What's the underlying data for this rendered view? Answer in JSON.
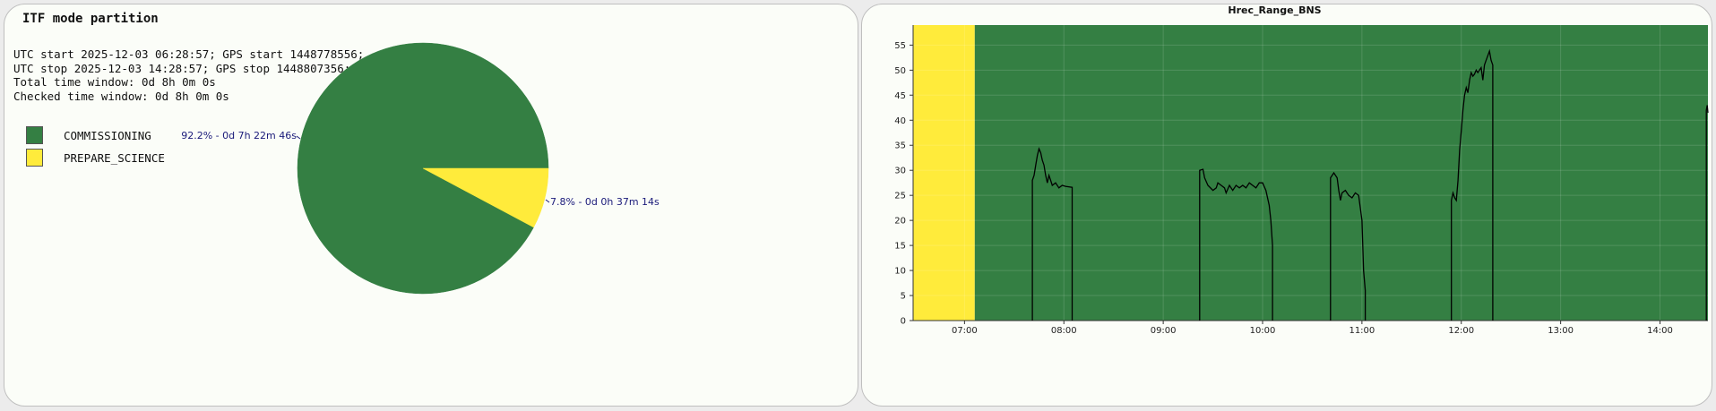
{
  "pie": {
    "title": "ITF mode partition",
    "info_lines": [
      "UTC start 2025-12-03 06:28:57; GPS start 1448778556;",
      "UTC stop 2025-12-03 14:28:57; GPS stop 1448807356;",
      "Total time window: 0d 8h 0m 0s",
      "Checked time window: 0d 8h 0m 0s"
    ],
    "legend": [
      {
        "label": "COMMISSIONING",
        "color": "#347f43"
      },
      {
        "label": "PREPARE_SCIENCE",
        "color": "#ffeb3b"
      }
    ]
  },
  "chart_data": [
    {
      "type": "pie",
      "title": "ITF mode partition",
      "slices": [
        {
          "name": "COMMISSIONING",
          "percent": 92.2,
          "label": "92.2% - 0d 7h 22m 46s",
          "color": "#347f43"
        },
        {
          "name": "PREPARE_SCIENCE",
          "percent": 7.8,
          "label": "7.8% - 0d 0h 37m 14s",
          "color": "#ffeb3b"
        }
      ]
    },
    {
      "type": "line",
      "title": "Hrec_Range_BNS",
      "xlabel": "",
      "ylabel": "",
      "x_range": [
        "06:28:57",
        "14:28:57"
      ],
      "ylim": [
        0,
        59
      ],
      "grid": true,
      "y_ticks": [
        0,
        5,
        10,
        15,
        20,
        25,
        30,
        35,
        40,
        45,
        50,
        55
      ],
      "x_ticks": [
        "07:00",
        "08:00",
        "09:00",
        "10:00",
        "11:00",
        "12:00",
        "13:00",
        "14:00"
      ],
      "line_color": "#000000",
      "background_bands": [
        {
          "mode": "PREPARE_SCIENCE",
          "start": "06:28:57",
          "end": "07:06:11",
          "color": "#ffeb3b"
        },
        {
          "mode": "COMMISSIONING",
          "start": "07:06:11",
          "end": "14:28:57",
          "color": "#347f43"
        }
      ],
      "series": [
        {
          "segments": [
            [
              [
                "07:41",
                0
              ],
              [
                "07:41",
                28
              ],
              [
                "07:42",
                29
              ],
              [
                "07:43",
                31
              ],
              [
                "07:44",
                33
              ],
              [
                "07:45",
                34.3
              ],
              [
                "07:46",
                33.5
              ],
              [
                "07:47",
                32
              ],
              [
                "07:48",
                31
              ],
              [
                "07:49",
                29
              ],
              [
                "07:50",
                27.5
              ],
              [
                "07:51",
                29
              ],
              [
                "07:52",
                28
              ],
              [
                "07:53",
                27
              ],
              [
                "07:55",
                27.5
              ],
              [
                "07:57",
                26.5
              ],
              [
                "07:59",
                27
              ],
              [
                "08:01",
                26.8
              ],
              [
                "08:05",
                26.6
              ],
              [
                "08:05",
                0
              ]
            ],
            [
              [
                "09:22",
                0
              ],
              [
                "09:22",
                30
              ],
              [
                "09:24",
                30.2
              ],
              [
                "09:25",
                28.5
              ],
              [
                "09:27",
                27
              ],
              [
                "09:30",
                26
              ],
              [
                "09:32",
                26.5
              ],
              [
                "09:33",
                27.5
              ],
              [
                "09:35",
                27
              ],
              [
                "09:37",
                26.5
              ],
              [
                "09:38",
                25.5
              ],
              [
                "09:40",
                27
              ],
              [
                "09:42",
                26
              ],
              [
                "09:44",
                27
              ],
              [
                "09:46",
                26.5
              ],
              [
                "09:48",
                27
              ],
              [
                "09:50",
                26.5
              ],
              [
                "09:52",
                27.5
              ],
              [
                "09:54",
                27
              ],
              [
                "09:56",
                26.5
              ],
              [
                "09:58",
                27.5
              ],
              [
                "10:00",
                27.5
              ],
              [
                "10:02",
                26
              ],
              [
                "10:04",
                23
              ],
              [
                "10:05",
                20
              ],
              [
                "10:06",
                15
              ],
              [
                "10:06",
                0
              ]
            ],
            [
              [
                "10:41",
                0
              ],
              [
                "10:41",
                28.5
              ],
              [
                "10:43",
                29.5
              ],
              [
                "10:45",
                28.5
              ],
              [
                "10:46",
                26
              ],
              [
                "10:47",
                24
              ],
              [
                "10:48",
                25.5
              ],
              [
                "10:50",
                26
              ],
              [
                "10:52",
                25
              ],
              [
                "10:54",
                24.5
              ],
              [
                "10:56",
                25.5
              ],
              [
                "10:58",
                25
              ],
              [
                "11:00",
                20
              ],
              [
                "11:01",
                10
              ],
              [
                "11:02",
                6
              ],
              [
                "11:02",
                0
              ]
            ],
            [
              [
                "11:54",
                0
              ],
              [
                "11:54",
                24
              ],
              [
                "11:55",
                25.5
              ],
              [
                "11:56",
                24.5
              ],
              [
                "11:57",
                24
              ],
              [
                "11:58",
                28
              ],
              [
                "11:59",
                34
              ],
              [
                "12:00",
                38
              ],
              [
                "12:01",
                42
              ],
              [
                "12:02",
                45
              ],
              [
                "12:03",
                46.5
              ],
              [
                "12:04",
                45.5
              ],
              [
                "12:05",
                48
              ],
              [
                "12:06",
                49.5
              ],
              [
                "12:07",
                48.8
              ],
              [
                "12:08",
                49.2
              ],
              [
                "12:09",
                50
              ],
              [
                "12:10",
                49.5
              ],
              [
                "12:12",
                50.5
              ],
              [
                "12:13",
                48
              ],
              [
                "12:14",
                51
              ],
              [
                "12:15",
                52
              ],
              [
                "12:17",
                53.8
              ],
              [
                "12:18",
                52
              ],
              [
                "12:19",
                51
              ],
              [
                "12:19",
                0
              ]
            ],
            [
              [
                "14:28",
                0
              ],
              [
                "14:28",
                42
              ],
              [
                "14:28:30",
                43
              ],
              [
                "14:28:57",
                41.5
              ]
            ]
          ]
        }
      ]
    }
  ]
}
